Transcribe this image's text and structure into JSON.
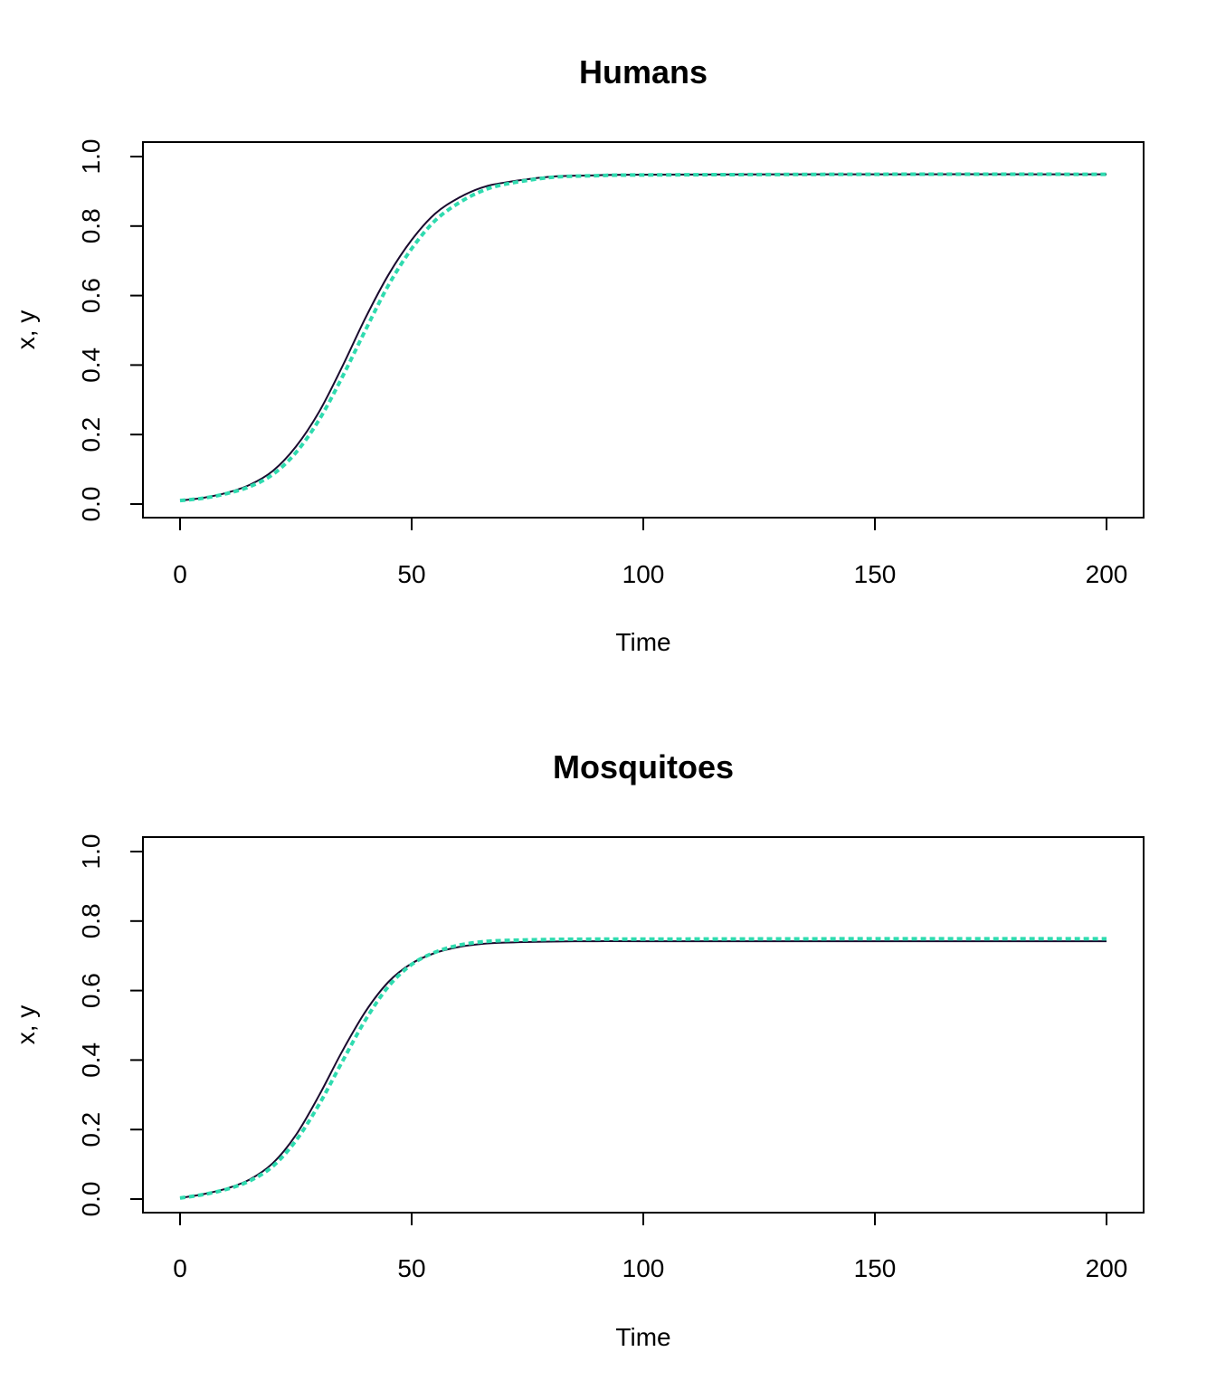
{
  "chart_data": [
    {
      "type": "line",
      "title": "Humans",
      "xlabel": "Time",
      "ylabel": "x, y",
      "xlim": [
        0,
        200
      ],
      "ylim": [
        0,
        1
      ],
      "xticks": [
        "0",
        "50",
        "100",
        "150",
        "200"
      ],
      "yticks": [
        "0.0",
        "0.2",
        "0.4",
        "0.6",
        "0.8",
        "1.0"
      ],
      "grid": false,
      "legend": "none",
      "series": [
        {
          "color": "#1a0a2e",
          "style": "solid",
          "x": [
            0,
            5,
            10,
            15,
            20,
            25,
            30,
            35,
            40,
            45,
            50,
            55,
            60,
            65,
            70,
            80,
            90,
            100,
            150,
            200
          ],
          "values": [
            0.01,
            0.018,
            0.032,
            0.055,
            0.095,
            0.165,
            0.265,
            0.395,
            0.535,
            0.66,
            0.76,
            0.835,
            0.88,
            0.91,
            0.925,
            0.942,
            0.946,
            0.948,
            0.949,
            0.949
          ]
        },
        {
          "color": "#2fdbaf",
          "style": "dashed",
          "x": [
            0,
            5,
            10,
            15,
            20,
            25,
            30,
            35,
            40,
            45,
            50,
            55,
            60,
            65,
            70,
            80,
            90,
            100,
            150,
            200
          ],
          "values": [
            0.01,
            0.017,
            0.03,
            0.05,
            0.085,
            0.148,
            0.242,
            0.365,
            0.5,
            0.63,
            0.735,
            0.815,
            0.865,
            0.9,
            0.92,
            0.94,
            0.945,
            0.947,
            0.949,
            0.949
          ]
        }
      ]
    },
    {
      "type": "line",
      "title": "Mosquitoes",
      "xlabel": "Time",
      "ylabel": "x, y",
      "xlim": [
        0,
        200
      ],
      "ylim": [
        0,
        1
      ],
      "xticks": [
        "0",
        "50",
        "100",
        "150",
        "200"
      ],
      "yticks": [
        "0.0",
        "0.2",
        "0.4",
        "0.6",
        "0.8",
        "1.0"
      ],
      "grid": false,
      "legend": "none",
      "series": [
        {
          "color": "#1a0a2e",
          "style": "solid",
          "x": [
            0,
            5,
            10,
            15,
            20,
            25,
            30,
            35,
            40,
            45,
            50,
            55,
            60,
            65,
            70,
            80,
            90,
            100,
            150,
            200
          ],
          "values": [
            0.003,
            0.014,
            0.03,
            0.056,
            0.103,
            0.184,
            0.298,
            0.425,
            0.539,
            0.625,
            0.678,
            0.708,
            0.725,
            0.734,
            0.738,
            0.741,
            0.742,
            0.742,
            0.742,
            0.742
          ]
        },
        {
          "color": "#2fdbaf",
          "style": "dashed",
          "x": [
            0,
            5,
            10,
            15,
            20,
            25,
            30,
            35,
            40,
            45,
            50,
            55,
            60,
            65,
            70,
            80,
            90,
            100,
            150,
            200
          ],
          "values": [
            0.003,
            0.013,
            0.028,
            0.052,
            0.094,
            0.168,
            0.272,
            0.395,
            0.515,
            0.612,
            0.675,
            0.71,
            0.73,
            0.74,
            0.744,
            0.747,
            0.748,
            0.748,
            0.749,
            0.749
          ]
        }
      ]
    }
  ]
}
